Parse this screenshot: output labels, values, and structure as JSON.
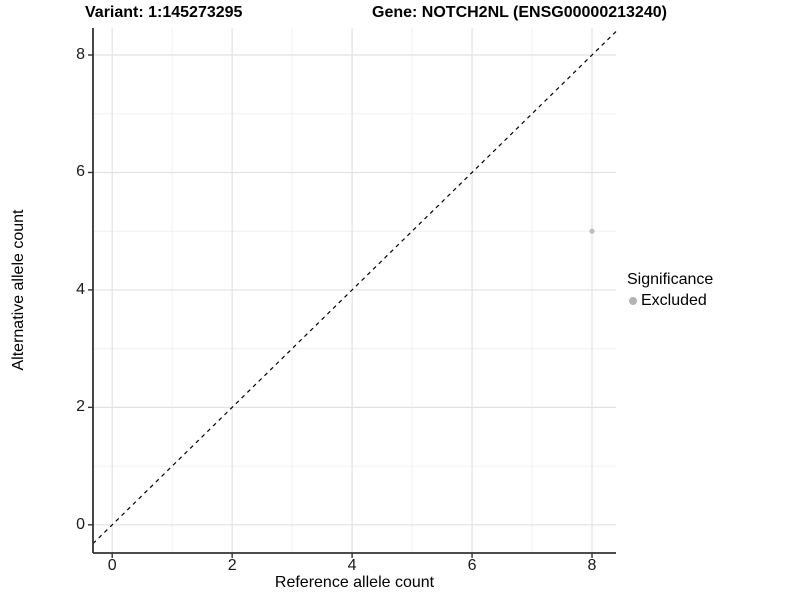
{
  "chart_data": {
    "type": "scatter",
    "title_variant": "Variant: 1:145273295",
    "title_gene": "Gene: NOTCH2NL (ENSG00000213240)",
    "xlabel": "Reference allele count",
    "ylabel": "Alternative allele count",
    "x_ticks": [
      0,
      2,
      4,
      6,
      8
    ],
    "y_ticks": [
      0,
      2,
      4,
      6,
      8
    ],
    "x_minor_gridlines": [
      1,
      3,
      5,
      7
    ],
    "y_minor_gridlines": [
      1,
      3,
      5,
      7
    ],
    "xlim": [
      -0.32,
      8.4
    ],
    "ylim": [
      -0.48,
      8.46
    ],
    "grid": "major and minor, light gray on white",
    "identity_line": {
      "equation": "y = x",
      "style": "dashed",
      "color": "#000000"
    },
    "points": [
      {
        "x": 8,
        "y": 5,
        "significance": "Excluded"
      }
    ],
    "point_color": "#bdbdbd",
    "legend": {
      "title": "Significance",
      "position": "right",
      "items": [
        {
          "label": "Excluded",
          "color": "#b3b3b3"
        }
      ]
    },
    "colors": {
      "background": "#ffffff",
      "grid_major": "#e2e2e2",
      "grid_minor": "#f0f0f0",
      "axis_line": "#333333",
      "tick_mark": "#333333",
      "tick_text": "#1a1a1a"
    }
  }
}
